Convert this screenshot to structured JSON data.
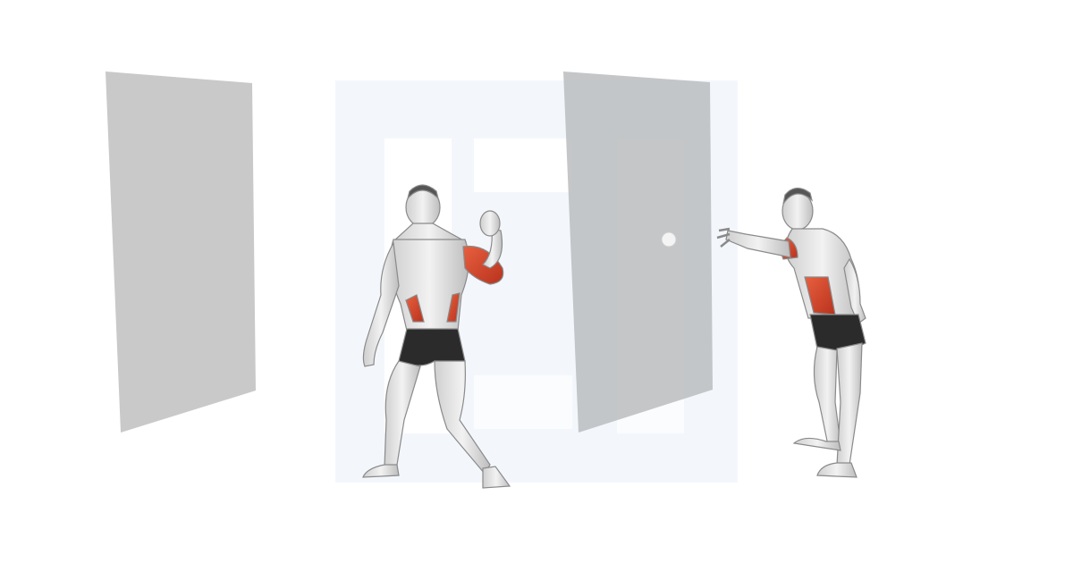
{
  "scene": {
    "left_panel": {
      "label": "",
      "color": "#c9c9c9"
    },
    "door": {
      "label": "",
      "color": "#c2c4c6",
      "knob_color": "#f2f2f2"
    },
    "watermark": {
      "text": "",
      "color": "#eef3fb"
    },
    "figure_back": {
      "role": "back-view-athlete"
    },
    "figure_side": {
      "role": "side-view-athlete"
    },
    "highlight_color": "#d6452c",
    "skin_color": "#e4e4e4",
    "shorts_color": "#2b2b2b"
  }
}
